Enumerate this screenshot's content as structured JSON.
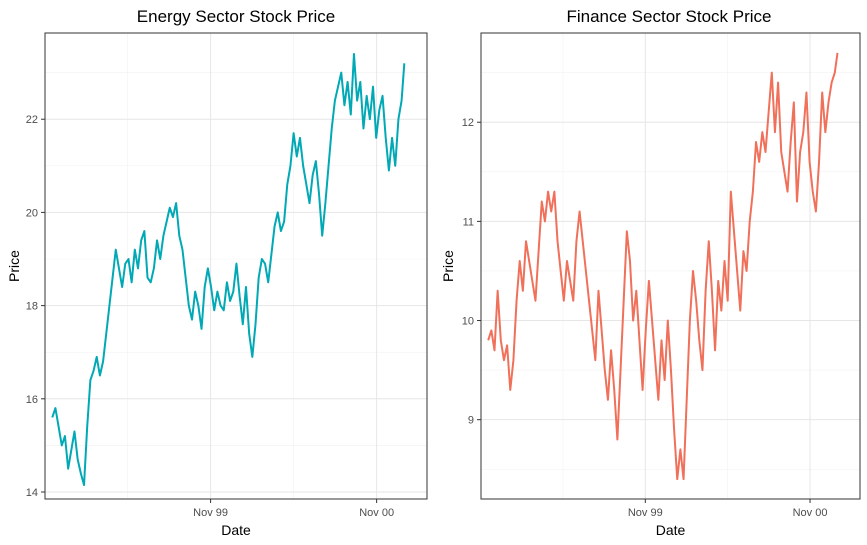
{
  "chart_data": [
    {
      "type": "line",
      "title": "Energy Sector Stock Price",
      "xlabel": "Date",
      "ylabel": "Price",
      "x_tick_labels": [
        "Nov 99",
        "Nov 00"
      ],
      "x_ticks": [
        "1999-11-01",
        "2000-11-01"
      ],
      "x_range": [
        "1998-11-01",
        "2001-02-20"
      ],
      "y_ticks": [
        14,
        16,
        18,
        20,
        22
      ],
      "ylim": [
        13.85,
        23.85
      ],
      "grid": true,
      "series": [
        {
          "color": "#00A9B5",
          "points": [
            [
              "1998-11-17",
              15.6
            ],
            [
              "1998-11-24",
              15.8
            ],
            [
              "1998-12-01",
              15.4
            ],
            [
              "1998-12-08",
              15.0
            ],
            [
              "1998-12-15",
              15.2
            ],
            [
              "1998-12-22",
              14.5
            ],
            [
              "1998-12-29",
              14.9
            ],
            [
              "1999-01-05",
              15.3
            ],
            [
              "1999-01-12",
              14.7
            ],
            [
              "1999-01-19",
              14.4
            ],
            [
              "1999-01-26",
              14.15
            ],
            [
              "1999-02-02",
              15.4
            ],
            [
              "1999-02-09",
              16.4
            ],
            [
              "1999-02-16",
              16.6
            ],
            [
              "1999-02-23",
              16.9
            ],
            [
              "1999-03-02",
              16.5
            ],
            [
              "1999-03-09",
              16.8
            ],
            [
              "1999-03-16",
              17.4
            ],
            [
              "1999-03-23",
              18.0
            ],
            [
              "1999-03-30",
              18.6
            ],
            [
              "1999-04-06",
              19.2
            ],
            [
              "1999-04-13",
              18.8
            ],
            [
              "1999-04-20",
              18.4
            ],
            [
              "1999-04-27",
              18.9
            ],
            [
              "1999-05-04",
              19.0
            ],
            [
              "1999-05-11",
              18.5
            ],
            [
              "1999-05-18",
              19.2
            ],
            [
              "1999-05-25",
              18.8
            ],
            [
              "1999-06-01",
              19.4
            ],
            [
              "1999-06-08",
              19.6
            ],
            [
              "1999-06-15",
              18.6
            ],
            [
              "1999-06-22",
              18.5
            ],
            [
              "1999-06-29",
              18.8
            ],
            [
              "1999-07-06",
              19.4
            ],
            [
              "1999-07-13",
              19.0
            ],
            [
              "1999-07-20",
              19.5
            ],
            [
              "1999-07-27",
              19.8
            ],
            [
              "1999-08-03",
              20.1
            ],
            [
              "1999-08-10",
              19.9
            ],
            [
              "1999-08-17",
              20.2
            ],
            [
              "1999-08-24",
              19.5
            ],
            [
              "1999-08-31",
              19.2
            ],
            [
              "1999-09-07",
              18.6
            ],
            [
              "1999-09-14",
              18.0
            ],
            [
              "1999-09-21",
              17.7
            ],
            [
              "1999-09-28",
              18.3
            ],
            [
              "1999-10-05",
              18.0
            ],
            [
              "1999-10-12",
              17.5
            ],
            [
              "1999-10-19",
              18.4
            ],
            [
              "1999-10-26",
              18.8
            ],
            [
              "1999-11-02",
              18.4
            ],
            [
              "1999-11-09",
              17.9
            ],
            [
              "1999-11-16",
              18.3
            ],
            [
              "1999-11-23",
              18.0
            ],
            [
              "1999-11-30",
              17.9
            ],
            [
              "1999-12-07",
              18.5
            ],
            [
              "1999-12-14",
              18.1
            ],
            [
              "1999-12-21",
              18.3
            ],
            [
              "1999-12-28",
              18.9
            ],
            [
              "2000-01-04",
              18.2
            ],
            [
              "2000-01-11",
              17.6
            ],
            [
              "2000-01-18",
              18.4
            ],
            [
              "2000-01-25",
              17.4
            ],
            [
              "2000-02-01",
              16.9
            ],
            [
              "2000-02-08",
              17.6
            ],
            [
              "2000-02-15",
              18.6
            ],
            [
              "2000-02-22",
              19.0
            ],
            [
              "2000-02-29",
              18.9
            ],
            [
              "2000-03-07",
              18.5
            ],
            [
              "2000-03-14",
              19.1
            ],
            [
              "2000-03-21",
              19.7
            ],
            [
              "2000-03-28",
              20.0
            ],
            [
              "2000-04-04",
              19.6
            ],
            [
              "2000-04-11",
              19.8
            ],
            [
              "2000-04-18",
              20.6
            ],
            [
              "2000-04-25",
              21.0
            ],
            [
              "2000-05-02",
              21.7
            ],
            [
              "2000-05-09",
              21.2
            ],
            [
              "2000-05-16",
              21.6
            ],
            [
              "2000-05-23",
              21.0
            ],
            [
              "2000-05-30",
              20.6
            ],
            [
              "2000-06-06",
              20.2
            ],
            [
              "2000-06-13",
              20.8
            ],
            [
              "2000-06-20",
              21.1
            ],
            [
              "2000-06-27",
              20.4
            ],
            [
              "2000-07-04",
              19.5
            ],
            [
              "2000-07-11",
              20.2
            ],
            [
              "2000-07-18",
              21.0
            ],
            [
              "2000-07-25",
              21.8
            ],
            [
              "2000-08-01",
              22.4
            ],
            [
              "2000-08-08",
              22.7
            ],
            [
              "2000-08-15",
              23.0
            ],
            [
              "2000-08-22",
              22.3
            ],
            [
              "2000-08-29",
              22.8
            ],
            [
              "2000-09-05",
              22.1
            ],
            [
              "2000-09-12",
              23.4
            ],
            [
              "2000-09-19",
              22.4
            ],
            [
              "2000-09-26",
              22.8
            ],
            [
              "2000-10-03",
              21.8
            ],
            [
              "2000-10-10",
              22.5
            ],
            [
              "2000-10-17",
              22.0
            ],
            [
              "2000-10-24",
              22.7
            ],
            [
              "2000-10-31",
              21.6
            ],
            [
              "2000-11-07",
              22.2
            ],
            [
              "2000-11-14",
              22.5
            ],
            [
              "2000-11-21",
              21.6
            ],
            [
              "2000-11-28",
              20.9
            ],
            [
              "2000-12-05",
              21.6
            ],
            [
              "2000-12-12",
              21.0
            ],
            [
              "2000-12-19",
              22.0
            ],
            [
              "2000-12-26",
              22.4
            ],
            [
              "2001-01-01",
              23.2
            ]
          ]
        }
      ]
    },
    {
      "type": "line",
      "title": "Finance Sector Stock Price",
      "xlabel": "Date",
      "ylabel": "Price",
      "x_tick_labels": [
        "Nov 99",
        "Nov 00"
      ],
      "x_ticks": [
        "1999-11-01",
        "2000-11-01"
      ],
      "x_range": [
        "1998-11-01",
        "2001-02-20"
      ],
      "y_ticks": [
        9,
        10,
        11,
        12
      ],
      "ylim": [
        8.2,
        12.9
      ],
      "grid": true,
      "series": [
        {
          "color": "#F0705A",
          "points": [
            [
              "1998-11-17",
              9.8
            ],
            [
              "1998-11-24",
              9.9
            ],
            [
              "1998-12-01",
              9.7
            ],
            [
              "1998-12-08",
              10.3
            ],
            [
              "1998-12-15",
              9.8
            ],
            [
              "1998-12-22",
              9.6
            ],
            [
              "1998-12-29",
              9.75
            ],
            [
              "1999-01-05",
              9.3
            ],
            [
              "1999-01-12",
              9.6
            ],
            [
              "1999-01-19",
              10.2
            ],
            [
              "1999-01-26",
              10.6
            ],
            [
              "1999-02-02",
              10.3
            ],
            [
              "1999-02-09",
              10.8
            ],
            [
              "1999-02-16",
              10.6
            ],
            [
              "1999-02-23",
              10.4
            ],
            [
              "1999-03-02",
              10.2
            ],
            [
              "1999-03-09",
              10.7
            ],
            [
              "1999-03-16",
              11.2
            ],
            [
              "1999-03-23",
              11.0
            ],
            [
              "1999-03-30",
              11.3
            ],
            [
              "1999-04-06",
              11.1
            ],
            [
              "1999-04-13",
              11.3
            ],
            [
              "1999-04-20",
              10.8
            ],
            [
              "1999-04-27",
              10.5
            ],
            [
              "1999-05-04",
              10.2
            ],
            [
              "1999-05-11",
              10.6
            ],
            [
              "1999-05-18",
              10.4
            ],
            [
              "1999-05-25",
              10.2
            ],
            [
              "1999-06-01",
              10.8
            ],
            [
              "1999-06-08",
              11.1
            ],
            [
              "1999-06-15",
              10.8
            ],
            [
              "1999-06-22",
              10.5
            ],
            [
              "1999-06-29",
              10.2
            ],
            [
              "1999-07-06",
              9.9
            ],
            [
              "1999-07-13",
              9.6
            ],
            [
              "1999-07-20",
              10.3
            ],
            [
              "1999-07-27",
              9.9
            ],
            [
              "1999-08-03",
              9.5
            ],
            [
              "1999-08-10",
              9.2
            ],
            [
              "1999-08-17",
              9.7
            ],
            [
              "1999-08-24",
              9.3
            ],
            [
              "1999-08-31",
              8.8
            ],
            [
              "1999-09-07",
              9.5
            ],
            [
              "1999-09-14",
              10.2
            ],
            [
              "1999-09-21",
              10.9
            ],
            [
              "1999-09-28",
              10.6
            ],
            [
              "1999-10-05",
              10.0
            ],
            [
              "1999-10-12",
              10.3
            ],
            [
              "1999-10-19",
              9.8
            ],
            [
              "1999-10-26",
              9.3
            ],
            [
              "1999-11-02",
              9.9
            ],
            [
              "1999-11-09",
              10.4
            ],
            [
              "1999-11-16",
              10.0
            ],
            [
              "1999-11-23",
              9.6
            ],
            [
              "1999-11-30",
              9.2
            ],
            [
              "1999-12-07",
              9.8
            ],
            [
              "1999-12-14",
              9.4
            ],
            [
              "1999-12-21",
              10.0
            ],
            [
              "1999-12-28",
              9.5
            ],
            [
              "2000-01-04",
              8.9
            ],
            [
              "2000-01-11",
              8.4
            ],
            [
              "2000-01-18",
              8.7
            ],
            [
              "2000-01-25",
              8.4
            ],
            [
              "2000-02-01",
              9.2
            ],
            [
              "2000-02-08",
              10.0
            ],
            [
              "2000-02-15",
              10.5
            ],
            [
              "2000-02-22",
              10.2
            ],
            [
              "2000-02-29",
              9.8
            ],
            [
              "2000-03-07",
              9.5
            ],
            [
              "2000-03-14",
              10.3
            ],
            [
              "2000-03-21",
              10.8
            ],
            [
              "2000-03-28",
              10.3
            ],
            [
              "2000-04-04",
              9.7
            ],
            [
              "2000-04-11",
              10.4
            ],
            [
              "2000-04-18",
              10.1
            ],
            [
              "2000-04-25",
              10.6
            ],
            [
              "2000-05-02",
              10.2
            ],
            [
              "2000-05-09",
              11.3
            ],
            [
              "2000-05-16",
              10.9
            ],
            [
              "2000-05-23",
              10.5
            ],
            [
              "2000-05-30",
              10.1
            ],
            [
              "2000-06-06",
              10.7
            ],
            [
              "2000-06-13",
              10.5
            ],
            [
              "2000-06-20",
              11.0
            ],
            [
              "2000-06-27",
              11.3
            ],
            [
              "2000-07-04",
              11.8
            ],
            [
              "2000-07-11",
              11.6
            ],
            [
              "2000-07-18",
              11.9
            ],
            [
              "2000-07-25",
              11.7
            ],
            [
              "2000-08-01",
              12.1
            ],
            [
              "2000-08-08",
              12.5
            ],
            [
              "2000-08-15",
              11.9
            ],
            [
              "2000-08-22",
              12.4
            ],
            [
              "2000-08-29",
              11.7
            ],
            [
              "2000-09-05",
              11.5
            ],
            [
              "2000-09-12",
              11.3
            ],
            [
              "2000-09-19",
              11.8
            ],
            [
              "2000-09-26",
              12.2
            ],
            [
              "2000-10-03",
              11.2
            ],
            [
              "2000-10-10",
              11.7
            ],
            [
              "2000-10-17",
              11.9
            ],
            [
              "2000-10-24",
              12.3
            ],
            [
              "2000-10-31",
              11.6
            ],
            [
              "2000-11-07",
              11.3
            ],
            [
              "2000-11-14",
              11.1
            ],
            [
              "2000-11-21",
              11.6
            ],
            [
              "2000-11-28",
              12.3
            ],
            [
              "2000-12-05",
              11.9
            ],
            [
              "2000-12-12",
              12.2
            ],
            [
              "2000-12-19",
              12.4
            ],
            [
              "2000-12-26",
              12.5
            ],
            [
              "2001-01-01",
              12.7
            ]
          ]
        }
      ]
    }
  ]
}
